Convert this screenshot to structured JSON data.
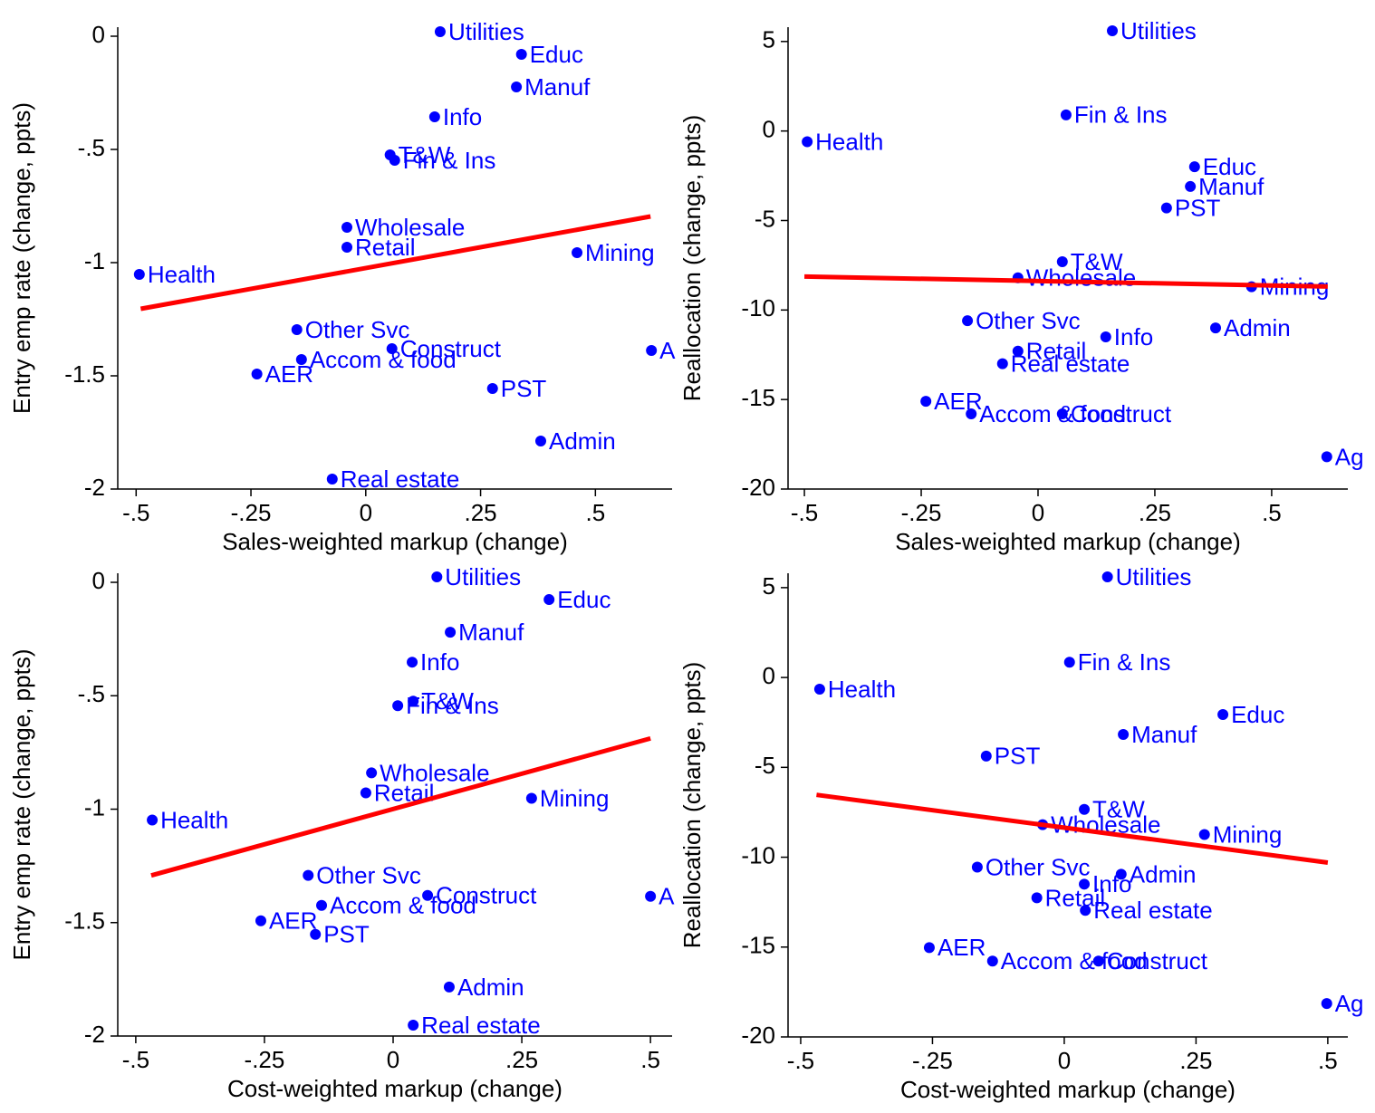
{
  "chart_data": [
    {
      "type": "scatter",
      "x_label": "Sales-weighted markup (change)",
      "y_label": "Entry emp rate (change, ppts)",
      "xlim": [
        -0.54,
        0.667
      ],
      "ylim": [
        -2,
        0.04
      ],
      "xticks": [
        {
          "value": -0.5,
          "label": "-.5"
        },
        {
          "value": -0.25,
          "label": "-.25"
        },
        0,
        {
          "value": 0.25,
          "label": ".25"
        },
        {
          "value": 0.5,
          "label": ".5"
        }
      ],
      "yticks": [
        0,
        {
          "value": -0.5,
          "label": "-.5"
        },
        -1,
        {
          "value": -1.5,
          "label": "-1.5"
        },
        -2
      ],
      "color": "#0000ff",
      "point_labels": [
        "Utilities",
        "Educ",
        "Manuf",
        "Info",
        "T&W",
        "Fin & Ins",
        "Wholesale",
        "Retail",
        "Mining",
        "Health",
        "Other Svc",
        "Construct",
        "Accom & food",
        "A",
        "AER",
        "PST",
        "Admin",
        "Real estate"
      ],
      "x": [
        0.162,
        0.339,
        0.328,
        0.15,
        0.053,
        0.063,
        -0.041,
        -0.041,
        0.46,
        -0.493,
        -0.15,
        0.057,
        -0.14,
        0.622,
        -0.237,
        0.276,
        0.381,
        -0.073
      ],
      "values": [
        0.02,
        -0.08,
        -0.224,
        -0.356,
        -0.524,
        -0.548,
        -0.844,
        -0.932,
        -0.956,
        -1.052,
        -1.296,
        -1.38,
        -1.428,
        -1.388,
        -1.492,
        -1.556,
        -1.788,
        -1.956
      ],
      "fit": {
        "color": "#ff0000",
        "x": [
          -0.49,
          0.62
        ],
        "values": [
          -1.204,
          -0.796
        ]
      }
    },
    {
      "type": "scatter",
      "x_label": "Sales-weighted markup (change)",
      "y_label": "Reallocation (change, ppts)",
      "xlim": [
        -0.535,
        0.663
      ],
      "ylim": [
        -20,
        5.8
      ],
      "xticks": [
        {
          "value": -0.5,
          "label": "-.5"
        },
        {
          "value": -0.25,
          "label": "-.25"
        },
        0,
        {
          "value": 0.25,
          "label": ".25"
        },
        {
          "value": 0.5,
          "label": ".5"
        }
      ],
      "yticks": [
        5,
        0,
        -5,
        -10,
        -15,
        -20
      ],
      "color": "#0000ff",
      "point_labels": [
        "Utilities",
        "Fin & Ins",
        "Health",
        "Educ",
        "Manuf",
        "PST",
        "T&W",
        "Wholesale",
        "Mining",
        "Other Svc",
        "Admin",
        "Info",
        "Retail",
        "Real estate",
        "AER",
        "Accom & food",
        "Construct",
        "Ag"
      ],
      "x": [
        0.159,
        0.06,
        -0.494,
        0.335,
        0.326,
        0.275,
        0.052,
        -0.043,
        0.457,
        -0.151,
        0.38,
        0.145,
        -0.043,
        -0.076,
        -0.24,
        -0.143,
        0.052,
        0.618
      ],
      "values": [
        5.6,
        0.9,
        -0.6,
        -2.0,
        -3.1,
        -4.3,
        -7.3,
        -8.2,
        -8.7,
        -10.6,
        -11.0,
        -11.5,
        -12.3,
        -13.0,
        -15.1,
        -15.8,
        -15.8,
        -18.2
      ],
      "fit": {
        "color": "#ff0000",
        "x": [
          -0.5,
          0.62
        ],
        "values": [
          -8.13,
          -8.69
        ]
      }
    },
    {
      "type": "scatter",
      "x_label": "Cost-weighted markup (change)",
      "y_label": "Entry emp rate (change, ppts)",
      "xlim": [
        -0.535,
        0.542
      ],
      "ylim": [
        -2,
        0.04
      ],
      "xticks": [
        {
          "value": -0.5,
          "label": "-.5"
        },
        {
          "value": -0.25,
          "label": "-.25"
        },
        0,
        {
          "value": 0.25,
          "label": ".25"
        },
        {
          "value": 0.5,
          "label": ".5"
        }
      ],
      "yticks": [
        0,
        {
          "value": -0.5,
          "label": "-.5"
        },
        -1,
        {
          "value": -1.5,
          "label": "-1.5"
        },
        -2
      ],
      "color": "#0000ff",
      "point_labels": [
        "Utilities",
        "Educ",
        "Manuf",
        "Info",
        "T&W",
        "Fin & Ins",
        "Wholesale",
        "Retail",
        "Mining",
        "Health",
        "Other Svc",
        "Construct",
        "Accom & food",
        "A",
        "AER",
        "PST",
        "Admin",
        "Real estate"
      ],
      "x": [
        0.085,
        0.303,
        0.111,
        0.037,
        0.039,
        0.009,
        -0.042,
        -0.053,
        0.269,
        -0.468,
        -0.165,
        0.067,
        -0.139,
        0.5,
        -0.257,
        -0.151,
        0.109,
        0.039
      ],
      "values": [
        0.024,
        -0.076,
        -0.22,
        -0.352,
        -0.524,
        -0.544,
        -0.84,
        -0.928,
        -0.952,
        -1.048,
        -1.292,
        -1.38,
        -1.424,
        -1.384,
        -1.492,
        -1.552,
        -1.784,
        -1.952
      ],
      "fit": {
        "color": "#ff0000",
        "x": [
          -0.47,
          0.5
        ],
        "values": [
          -1.292,
          -0.688
        ]
      }
    },
    {
      "type": "scatter",
      "x_label": "Cost-weighted markup (change)",
      "y_label": "Reallocation (change, ppts)",
      "xlim": [
        -0.524,
        0.538
      ],
      "ylim": [
        -20,
        5.8
      ],
      "xticks": [
        {
          "value": -0.5,
          "label": "-.5"
        },
        {
          "value": -0.25,
          "label": "-.25"
        },
        0,
        {
          "value": 0.25,
          "label": ".25"
        },
        {
          "value": 0.5,
          "label": ".5"
        }
      ],
      "yticks": [
        5,
        0,
        -5,
        -10,
        -15,
        -20
      ],
      "color": "#0000ff",
      "point_labels": [
        "Utilities",
        "Fin & Ins",
        "Health",
        "Educ",
        "Manuf",
        "PST",
        "T&W",
        "Wholesale",
        "Mining",
        "Other Svc",
        "Admin",
        "Info",
        "Retail",
        "Real estate",
        "AER",
        "Accom & food",
        "Construct",
        "Ag"
      ],
      "x": [
        0.082,
        0.01,
        -0.464,
        0.301,
        0.112,
        -0.148,
        0.038,
        -0.041,
        0.266,
        -0.165,
        0.108,
        0.038,
        -0.052,
        0.04,
        -0.256,
        -0.136,
        0.065,
        0.498
      ],
      "values": [
        5.6,
        0.85,
        -0.65,
        -2.06,
        -3.17,
        -4.37,
        -7.34,
        -8.19,
        -8.74,
        -10.55,
        -10.95,
        -11.5,
        -12.26,
        -12.96,
        -15.03,
        -15.78,
        -15.78,
        -18.14
      ],
      "fit": {
        "color": "#ff0000",
        "x": [
          -0.47,
          0.5
        ],
        "values": [
          -6.53,
          -10.3
        ]
      }
    }
  ]
}
